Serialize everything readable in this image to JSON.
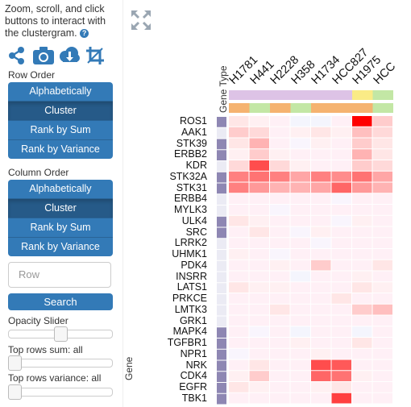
{
  "sidebar": {
    "instructions": "Zoom, scroll, and click buttons to interact with the clustergram.",
    "help_icon": "question-circle-icon",
    "icons": [
      "share-icon",
      "camera-icon",
      "cloud-download-icon",
      "crop-icon"
    ],
    "row_order_label": "Row Order",
    "row_order_buttons": [
      "Alphabetically",
      "Cluster",
      "Rank by Sum",
      "Rank by Variance"
    ],
    "row_order_active": "Cluster",
    "column_order_label": "Column Order",
    "column_order_buttons": [
      "Alphabetically",
      "Cluster",
      "Rank by Sum",
      "Rank by Variance"
    ],
    "column_order_active": "Cluster",
    "search_placeholder": "Row",
    "search_button": "Search",
    "opacity_label": "Opacity Slider",
    "opacity_value": 0.5,
    "top_rows_sum_label": "Top rows sum: all",
    "top_rows_variance_label": "Top rows variance: all"
  },
  "clustergram": {
    "expand_icon": "expand-icon",
    "row_category_title": "Gene Type",
    "row_axis_label": "Gene",
    "columns": [
      "H1781",
      "H441",
      "H2228",
      "H358",
      "H1734",
      "HCC827",
      "H1975",
      "HCC"
    ],
    "column_category_top_colors": [
      "#ddc3e6",
      "#ddc3e6",
      "#ddc3e6",
      "#ddc3e6",
      "#ddc3e6",
      "#ddc3e6",
      "#faeb86",
      "#c3e7a5"
    ],
    "column_category_bottom_colors": [
      "#f5b370",
      "#c3e7a5",
      "#f5b370",
      "#c3e7a5",
      "#f5b370",
      "#f5b370",
      "#f5b370",
      "#c3e7a5"
    ],
    "rows": [
      "ROS1",
      "AAK1",
      "STK39",
      "ERBB2",
      "KDR",
      "STK32A",
      "STK31",
      "ERBB4",
      "MYLK3",
      "ULK4",
      "SRC",
      "LRRK2",
      "UHMK1",
      "PDK4",
      "INSRR",
      "LATS1",
      "PRKCE",
      "LMTK3",
      "GRK1",
      "MAPK4",
      "TGFBR1",
      "NPR1",
      "NRK",
      "CDK4",
      "EGFR",
      "TBK1"
    ],
    "row_category_colors": [
      "#8e87b3",
      "#ebebf4",
      "#8e87b3",
      "#8e87b3",
      "#ebebf4",
      "#8e87b3",
      "#8e87b3",
      "#ebebf4",
      "#ebebf4",
      "#8e87b3",
      "#8e87b3",
      "#ebebf4",
      "#ebebf4",
      "#ebebf4",
      "#ebebf4",
      "#ebebf4",
      "#ebebf4",
      "#ebebf4",
      "#ebebf4",
      "#8e87b3",
      "#8e87b3",
      "#8e87b3",
      "#8e87b3",
      "#8e87b3",
      "#8e87b3",
      "#8e87b3"
    ],
    "matrix": [
      [
        0.1,
        0.05,
        0.0,
        -0.1,
        -0.1,
        0.0,
        1.0,
        0.2
      ],
      [
        0.2,
        0.15,
        0.0,
        0.05,
        0.1,
        0.05,
        0.25,
        0.15
      ],
      [
        0.1,
        0.3,
        0.0,
        -0.05,
        0.05,
        0.0,
        0.2,
        0.1
      ],
      [
        0.05,
        0.2,
        0.05,
        0.0,
        0.0,
        0.0,
        0.3,
        0.1
      ],
      [
        0.15,
        0.7,
        0.15,
        0.05,
        0.0,
        0.0,
        0.2,
        0.15
      ],
      [
        0.5,
        0.55,
        0.5,
        0.35,
        0.5,
        0.45,
        0.55,
        0.35
      ],
      [
        0.5,
        0.4,
        0.3,
        0.3,
        0.35,
        0.6,
        0.4,
        0.3
      ],
      [
        0.0,
        0.0,
        0.0,
        0.0,
        0.0,
        -0.05,
        0.0,
        0.0
      ],
      [
        0.0,
        0.0,
        -0.05,
        0.0,
        0.0,
        0.0,
        0.0,
        0.0
      ],
      [
        0.1,
        0.05,
        0.0,
        0.0,
        0.0,
        -0.05,
        0.05,
        0.0
      ],
      [
        0.0,
        0.1,
        0.0,
        -0.05,
        0.05,
        0.0,
        0.0,
        0.0
      ],
      [
        0.0,
        0.0,
        0.0,
        0.0,
        -0.05,
        0.0,
        0.0,
        0.0
      ],
      [
        0.05,
        0.0,
        -0.05,
        0.0,
        0.0,
        0.0,
        0.0,
        0.0
      ],
      [
        0.0,
        0.0,
        0.05,
        0.0,
        0.2,
        0.0,
        0.0,
        0.1
      ],
      [
        0.0,
        0.0,
        0.0,
        -0.1,
        0.0,
        0.0,
        0.05,
        0.0
      ],
      [
        0.1,
        0.05,
        0.05,
        0.0,
        0.0,
        0.0,
        0.1,
        0.05
      ],
      [
        0.0,
        0.0,
        0.0,
        0.0,
        0.0,
        0.1,
        0.0,
        0.0
      ],
      [
        0.0,
        0.0,
        0.1,
        0.0,
        0.0,
        0.0,
        0.2,
        0.25
      ],
      [
        0.0,
        0.0,
        0.0,
        0.0,
        0.0,
        0.0,
        0.0,
        0.0
      ],
      [
        0.0,
        -0.05,
        0.0,
        -0.1,
        0.0,
        0.0,
        -0.1,
        0.0
      ],
      [
        0.0,
        0.0,
        0.0,
        0.05,
        0.0,
        0.0,
        0.1,
        0.0
      ],
      [
        -0.05,
        0.0,
        0.0,
        0.0,
        0.05,
        0.0,
        0.0,
        0.0
      ],
      [
        0.0,
        0.1,
        0.0,
        0.0,
        0.7,
        0.65,
        0.0,
        0.0
      ],
      [
        0.05,
        0.2,
        0.0,
        0.0,
        0.6,
        0.55,
        0.05,
        0.0
      ],
      [
        0.1,
        0.05,
        0.0,
        0.0,
        0.05,
        0.1,
        0.0,
        0.0
      ],
      [
        0.0,
        0.0,
        0.0,
        0.0,
        0.0,
        0.75,
        0.0,
        0.0
      ]
    ],
    "colors": {
      "positive": "#ff0000",
      "negative": "#1c5fcf"
    }
  }
}
